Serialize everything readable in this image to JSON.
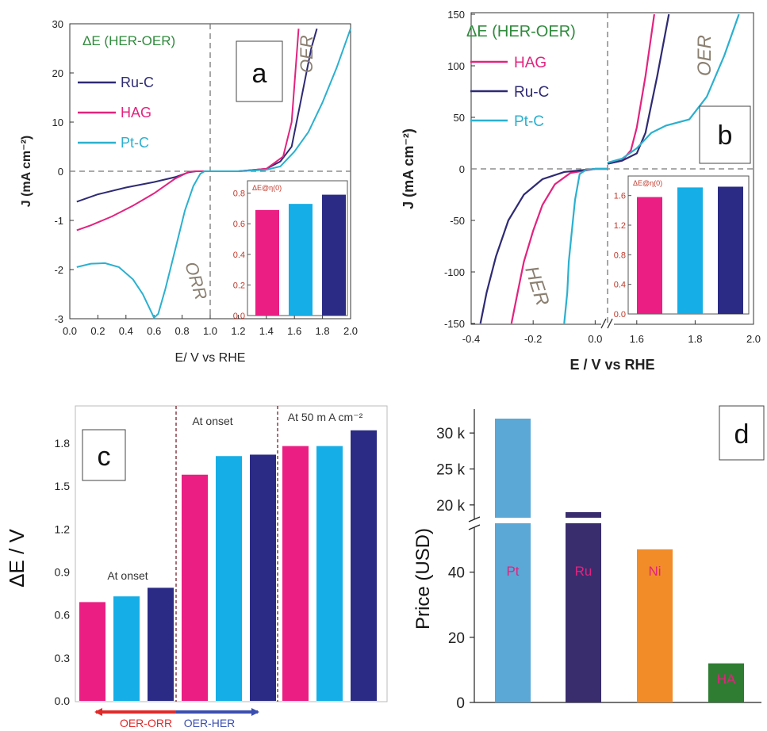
{
  "colors": {
    "hag": "#e2237f",
    "ru_c": "#2e2a74",
    "pt_c": "#2bb0cf",
    "bar_pink": "#ea1e83",
    "bar_cyan": "#15aee6",
    "bar_navy": "#2b2b86",
    "legend_title": "#2f8a3c",
    "panel_text": "#8a7f70",
    "inset_axis": "#c0392b",
    "pt_bar": "#5ba7d6",
    "ru_bar": "#3a2d6e",
    "ni_bar": "#f28c28",
    "ha_bar": "#2e7d32",
    "label_pink": "#e2237f",
    "arrow_red": "#e02a2a",
    "arrow_blue": "#3a4fb0"
  },
  "chart_data": [
    {
      "panel": "a",
      "type": "line",
      "panel_label": "a",
      "xlabel": "E/ V vs RHE",
      "ylabel": "J (mA cm⁻²)",
      "xlim": [
        0.0,
        2.0
      ],
      "x_ticks": [
        "0.0",
        "0.2",
        "0.4",
        "0.6",
        "0.8",
        "1.0",
        "1.2",
        "1.4",
        "1.6",
        "1.8",
        "2.0"
      ],
      "y_ticks": [
        "30",
        "20",
        "10",
        "0",
        "-1",
        "-2",
        "-3"
      ],
      "legend_title": "ΔE (HER-OER)",
      "annotations": [
        "OER",
        "ORR"
      ],
      "series": [
        {
          "name": "Ru-C",
          "color_key": "ru_c",
          "points": [
            [
              0.05,
              -0.62
            ],
            [
              0.2,
              -0.47
            ],
            [
              0.4,
              -0.33
            ],
            [
              0.6,
              -0.22
            ],
            [
              0.75,
              -0.12
            ],
            [
              0.85,
              -0.02
            ],
            [
              0.9,
              0.0
            ],
            [
              1.0,
              0.0
            ],
            [
              1.2,
              0.0
            ],
            [
              1.4,
              0.5
            ],
            [
              1.5,
              2.0
            ],
            [
              1.58,
              5.0
            ],
            [
              1.65,
              15.0
            ],
            [
              1.72,
              25.0
            ],
            [
              1.76,
              29.0
            ]
          ]
        },
        {
          "name": "HAG",
          "color_key": "hag",
          "points": [
            [
              0.05,
              -1.2
            ],
            [
              0.15,
              -1.1
            ],
            [
              0.3,
              -0.92
            ],
            [
              0.45,
              -0.7
            ],
            [
              0.6,
              -0.45
            ],
            [
              0.75,
              -0.15
            ],
            [
              0.85,
              -0.01
            ],
            [
              0.9,
              0.0
            ],
            [
              1.0,
              0.0
            ],
            [
              1.2,
              0.0
            ],
            [
              1.4,
              0.5
            ],
            [
              1.52,
              3.0
            ],
            [
              1.58,
              10.0
            ],
            [
              1.63,
              29.0
            ]
          ]
        },
        {
          "name": "Pt-C",
          "color_key": "pt_c",
          "points": [
            [
              0.05,
              -1.95
            ],
            [
              0.15,
              -1.88
            ],
            [
              0.25,
              -1.87
            ],
            [
              0.35,
              -1.95
            ],
            [
              0.45,
              -2.2
            ],
            [
              0.52,
              -2.5
            ],
            [
              0.57,
              -2.8
            ],
            [
              0.6,
              -2.98
            ],
            [
              0.63,
              -2.9
            ],
            [
              0.68,
              -2.4
            ],
            [
              0.75,
              -1.6
            ],
            [
              0.82,
              -0.8
            ],
            [
              0.88,
              -0.3
            ],
            [
              0.93,
              -0.05
            ],
            [
              0.96,
              0.0
            ],
            [
              1.0,
              0.0
            ],
            [
              1.2,
              0.0
            ],
            [
              1.4,
              0.3
            ],
            [
              1.5,
              1.0
            ],
            [
              1.6,
              4.0
            ],
            [
              1.7,
              8.0
            ],
            [
              1.8,
              14.0
            ],
            [
              1.9,
              21.0
            ],
            [
              2.0,
              29.0
            ]
          ]
        }
      ],
      "inset": {
        "title": "ΔE@η(0)",
        "y_ticks": [
          "0.0",
          "0.2",
          "0.4",
          "0.6",
          "0.8"
        ],
        "ylim": [
          0.0,
          0.85
        ],
        "bars": [
          {
            "value": 0.69,
            "color_key": "bar_pink"
          },
          {
            "value": 0.73,
            "color_key": "bar_cyan"
          },
          {
            "value": 0.79,
            "color_key": "bar_navy"
          }
        ]
      }
    },
    {
      "panel": "b",
      "type": "line",
      "panel_label": "b",
      "xlabel": "E / V vs RHE",
      "ylabel": "J (mA cm⁻²)",
      "x_ticks": [
        "-0.4",
        "-0.2",
        "0.0",
        "1.6",
        "1.8",
        "2.0"
      ],
      "y_ticks": [
        "150",
        "100",
        "50",
        "0",
        "-50",
        "-100",
        "-150"
      ],
      "ylim": [
        -150,
        150
      ],
      "legend_title": "ΔE (HER-OER)",
      "annotations": [
        "OER",
        "HER"
      ],
      "series": [
        {
          "name": "HAG",
          "color_key": "hag",
          "left_points": [
            [
              -0.27,
              -150
            ],
            [
              -0.25,
              -120
            ],
            [
              -0.23,
              -90
            ],
            [
              -0.2,
              -60
            ],
            [
              -0.17,
              -35
            ],
            [
              -0.13,
              -15
            ],
            [
              -0.08,
              -4
            ],
            [
              0.0,
              0
            ],
            [
              0.04,
              0
            ]
          ],
          "right_points": [
            [
              1.5,
              5
            ],
            [
              1.55,
              8
            ],
            [
              1.58,
              18
            ],
            [
              1.6,
              40
            ],
            [
              1.63,
              90
            ],
            [
              1.66,
              150
            ]
          ]
        },
        {
          "name": "Ru-C",
          "color_key": "ru_c",
          "left_points": [
            [
              -0.37,
              -150
            ],
            [
              -0.35,
              -120
            ],
            [
              -0.32,
              -85
            ],
            [
              -0.28,
              -50
            ],
            [
              -0.23,
              -25
            ],
            [
              -0.17,
              -10
            ],
            [
              -0.1,
              -3
            ],
            [
              0.0,
              0
            ],
            [
              0.04,
              0
            ]
          ],
          "right_points": [
            [
              1.5,
              5
            ],
            [
              1.55,
              8
            ],
            [
              1.6,
              15
            ],
            [
              1.63,
              35
            ],
            [
              1.67,
              90
            ],
            [
              1.71,
              150
            ]
          ]
        },
        {
          "name": "Pt-C",
          "color_key": "pt_c",
          "left_points": [
            [
              -0.1,
              -150
            ],
            [
              -0.09,
              -120
            ],
            [
              -0.085,
              -90
            ],
            [
              -0.075,
              -60
            ],
            [
              -0.065,
              -30
            ],
            [
              -0.05,
              -5
            ],
            [
              -0.03,
              -1
            ],
            [
              0.0,
              0
            ],
            [
              0.04,
              0
            ]
          ],
          "right_points": [
            [
              1.5,
              6
            ],
            [
              1.55,
              10
            ],
            [
              1.6,
              20
            ],
            [
              1.65,
              35
            ],
            [
              1.7,
              42
            ],
            [
              1.78,
              48
            ],
            [
              1.84,
              70
            ],
            [
              1.9,
              110
            ],
            [
              1.95,
              150
            ]
          ]
        }
      ],
      "inset": {
        "title": "ΔE@η(0)",
        "y_ticks": [
          "0.0",
          "0.4",
          "0.8",
          "1.2",
          "1.6"
        ],
        "ylim": [
          0.0,
          1.8
        ],
        "bars": [
          {
            "value": 1.58,
            "color_key": "bar_pink"
          },
          {
            "value": 1.71,
            "color_key": "bar_cyan"
          },
          {
            "value": 1.72,
            "color_key": "bar_navy"
          }
        ]
      }
    },
    {
      "panel": "c",
      "type": "bar",
      "panel_label": "c",
      "ylabel": "ΔE / V",
      "ylim": [
        0.0,
        1.98
      ],
      "y_ticks": [
        "0.0",
        "0.3",
        "0.6",
        "0.9",
        "1.2",
        "1.5",
        "1.8"
      ],
      "groups": [
        {
          "label": "At onset",
          "bars": [
            {
              "value": 0.69,
              "color_key": "bar_pink"
            },
            {
              "value": 0.73,
              "color_key": "bar_cyan"
            },
            {
              "value": 0.79,
              "color_key": "bar_navy"
            }
          ]
        },
        {
          "label": "At onset",
          "bars": [
            {
              "value": 1.58,
              "color_key": "bar_pink"
            },
            {
              "value": 1.71,
              "color_key": "bar_cyan"
            },
            {
              "value": 1.72,
              "color_key": "bar_navy"
            }
          ]
        },
        {
          "label": "At 50 m A cm⁻²",
          "bars": [
            {
              "value": 1.78,
              "color_key": "bar_pink"
            },
            {
              "value": 1.78,
              "color_key": "bar_cyan"
            },
            {
              "value": 1.89,
              "color_key": "bar_navy"
            }
          ]
        }
      ],
      "arrows": [
        {
          "label": "OER-ORR",
          "color_key": "arrow_red"
        },
        {
          "label": "OER-HER",
          "color_key": "arrow_blue"
        }
      ]
    },
    {
      "panel": "d",
      "type": "bar",
      "panel_label": "d",
      "ylabel": "Price (USD)",
      "y_ticks_lower": [
        "0",
        "20",
        "40"
      ],
      "y_ticks_upper": [
        "20 k",
        "25 k",
        "30 k"
      ],
      "categories": [
        "Pt",
        "Ru",
        "Ni",
        "HA"
      ],
      "values": [
        32000,
        19000,
        47,
        12
      ],
      "color_keys": [
        "pt_bar",
        "ru_bar",
        "ni_bar",
        "ha_bar"
      ],
      "scale": "broken axis: 0-55 linear, 18k-32k linear"
    }
  ]
}
